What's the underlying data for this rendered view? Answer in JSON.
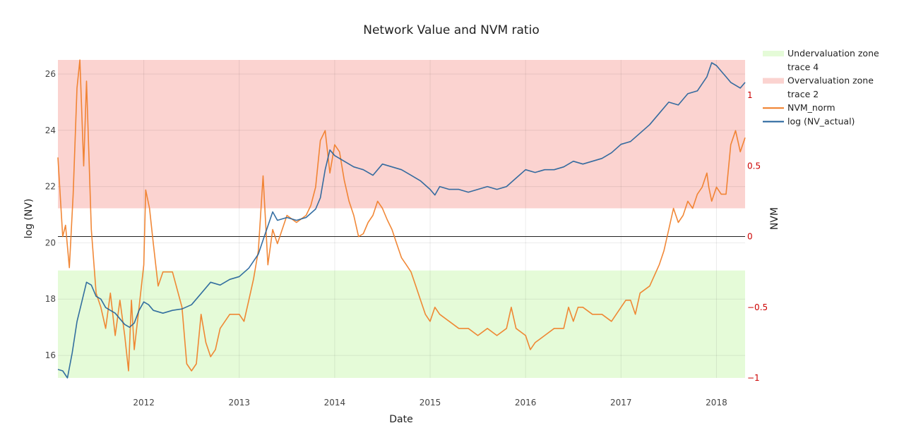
{
  "chart_data": {
    "type": "line",
    "title": "Network Value and NVM ratio",
    "xlabel": "Date",
    "ylabel_left": "log (NV)",
    "ylabel_right": "NVM",
    "x_range": [
      2011.1,
      2018.3
    ],
    "y_left_range": [
      15.2,
      26.5
    ],
    "y_right_range": [
      -1.0,
      1.25
    ],
    "x_ticks": [
      {
        "value": 2012,
        "label": "2012"
      },
      {
        "value": 2013,
        "label": "2013"
      },
      {
        "value": 2014,
        "label": "2014"
      },
      {
        "value": 2015,
        "label": "2015"
      },
      {
        "value": 2016,
        "label": "2016"
      },
      {
        "value": 2017,
        "label": "2017"
      },
      {
        "value": 2018,
        "label": "2018"
      }
    ],
    "y_left_ticks": [
      {
        "value": 16,
        "label": "16"
      },
      {
        "value": 18,
        "label": "18"
      },
      {
        "value": 20,
        "label": "20"
      },
      {
        "value": 22,
        "label": "22"
      },
      {
        "value": 24,
        "label": "24"
      },
      {
        "value": 26,
        "label": "26"
      }
    ],
    "y_right_ticks": [
      {
        "value": -1,
        "label": "−1"
      },
      {
        "value": -0.5,
        "label": "−0.5"
      },
      {
        "value": 0,
        "label": "0"
      },
      {
        "value": 0.5,
        "label": "0.5"
      },
      {
        "value": 1,
        "label": "1"
      }
    ],
    "zones": [
      {
        "name": "Undervaluation zone",
        "axis": "right",
        "y0": -1.0,
        "y1": -0.24,
        "color": "#e5fbd8"
      },
      {
        "name": "Overvaluation zone",
        "axis": "right",
        "y0": 0.2,
        "y1": 1.25,
        "color": "#fbd3d0"
      }
    ],
    "zero_line": {
      "axis": "right",
      "value": 0
    },
    "series": [
      {
        "name": "log (NV_actual)",
        "axis": "left",
        "color": "#1f5f99",
        "points": [
          [
            2011.1,
            15.5
          ],
          [
            2011.15,
            15.45
          ],
          [
            2011.2,
            15.2
          ],
          [
            2011.25,
            16.1
          ],
          [
            2011.3,
            17.2
          ],
          [
            2011.35,
            17.9
          ],
          [
            2011.4,
            18.6
          ],
          [
            2011.45,
            18.5
          ],
          [
            2011.5,
            18.1
          ],
          [
            2011.55,
            18.0
          ],
          [
            2011.6,
            17.7
          ],
          [
            2011.65,
            17.6
          ],
          [
            2011.7,
            17.5
          ],
          [
            2011.75,
            17.3
          ],
          [
            2011.8,
            17.1
          ],
          [
            2011.85,
            17.0
          ],
          [
            2011.9,
            17.15
          ],
          [
            2011.95,
            17.6
          ],
          [
            2012.0,
            17.9
          ],
          [
            2012.05,
            17.8
          ],
          [
            2012.1,
            17.6
          ],
          [
            2012.2,
            17.5
          ],
          [
            2012.3,
            17.6
          ],
          [
            2012.4,
            17.65
          ],
          [
            2012.5,
            17.8
          ],
          [
            2012.6,
            18.2
          ],
          [
            2012.7,
            18.6
          ],
          [
            2012.8,
            18.5
          ],
          [
            2012.9,
            18.7
          ],
          [
            2013.0,
            18.8
          ],
          [
            2013.1,
            19.1
          ],
          [
            2013.2,
            19.6
          ],
          [
            2013.25,
            20.1
          ],
          [
            2013.3,
            20.6
          ],
          [
            2013.35,
            21.1
          ],
          [
            2013.4,
            20.8
          ],
          [
            2013.5,
            20.9
          ],
          [
            2013.6,
            20.8
          ],
          [
            2013.7,
            20.9
          ],
          [
            2013.8,
            21.2
          ],
          [
            2013.85,
            21.6
          ],
          [
            2013.9,
            22.6
          ],
          [
            2013.95,
            23.3
          ],
          [
            2014.0,
            23.1
          ],
          [
            2014.1,
            22.9
          ],
          [
            2014.2,
            22.7
          ],
          [
            2014.3,
            22.6
          ],
          [
            2014.4,
            22.4
          ],
          [
            2014.5,
            22.8
          ],
          [
            2014.6,
            22.7
          ],
          [
            2014.7,
            22.6
          ],
          [
            2014.8,
            22.4
          ],
          [
            2014.9,
            22.2
          ],
          [
            2015.0,
            21.9
          ],
          [
            2015.05,
            21.7
          ],
          [
            2015.1,
            22.0
          ],
          [
            2015.2,
            21.9
          ],
          [
            2015.3,
            21.9
          ],
          [
            2015.4,
            21.8
          ],
          [
            2015.5,
            21.9
          ],
          [
            2015.6,
            22.0
          ],
          [
            2015.7,
            21.9
          ],
          [
            2015.8,
            22.0
          ],
          [
            2015.9,
            22.3
          ],
          [
            2016.0,
            22.6
          ],
          [
            2016.1,
            22.5
          ],
          [
            2016.2,
            22.6
          ],
          [
            2016.3,
            22.6
          ],
          [
            2016.4,
            22.7
          ],
          [
            2016.5,
            22.9
          ],
          [
            2016.6,
            22.8
          ],
          [
            2016.7,
            22.9
          ],
          [
            2016.8,
            23.0
          ],
          [
            2016.9,
            23.2
          ],
          [
            2017.0,
            23.5
          ],
          [
            2017.1,
            23.6
          ],
          [
            2017.2,
            23.9
          ],
          [
            2017.3,
            24.2
          ],
          [
            2017.4,
            24.6
          ],
          [
            2017.5,
            25.0
          ],
          [
            2017.6,
            24.9
          ],
          [
            2017.7,
            25.3
          ],
          [
            2017.8,
            25.4
          ],
          [
            2017.9,
            25.9
          ],
          [
            2017.95,
            26.4
          ],
          [
            2018.0,
            26.3
          ],
          [
            2018.05,
            26.1
          ],
          [
            2018.1,
            25.9
          ],
          [
            2018.15,
            25.7
          ],
          [
            2018.2,
            25.6
          ],
          [
            2018.25,
            25.5
          ],
          [
            2018.3,
            25.7
          ]
        ]
      },
      {
        "name": "NVM_norm",
        "axis": "right",
        "color": "#ef7b22",
        "points": [
          [
            2011.1,
            0.56
          ],
          [
            2011.15,
            0.0
          ],
          [
            2011.18,
            0.08
          ],
          [
            2011.22,
            -0.22
          ],
          [
            2011.26,
            0.3
          ],
          [
            2011.3,
            1.05
          ],
          [
            2011.33,
            1.25
          ],
          [
            2011.37,
            0.5
          ],
          [
            2011.4,
            1.1
          ],
          [
            2011.45,
            0.05
          ],
          [
            2011.5,
            -0.4
          ],
          [
            2011.55,
            -0.5
          ],
          [
            2011.6,
            -0.65
          ],
          [
            2011.65,
            -0.4
          ],
          [
            2011.7,
            -0.7
          ],
          [
            2011.75,
            -0.45
          ],
          [
            2011.8,
            -0.7
          ],
          [
            2011.84,
            -0.95
          ],
          [
            2011.87,
            -0.45
          ],
          [
            2011.9,
            -0.8
          ],
          [
            2011.95,
            -0.5
          ],
          [
            2012.0,
            -0.2
          ],
          [
            2012.02,
            0.33
          ],
          [
            2012.06,
            0.2
          ],
          [
            2012.1,
            -0.05
          ],
          [
            2012.15,
            -0.35
          ],
          [
            2012.2,
            -0.25
          ],
          [
            2012.3,
            -0.25
          ],
          [
            2012.4,
            -0.5
          ],
          [
            2012.45,
            -0.9
          ],
          [
            2012.5,
            -0.95
          ],
          [
            2012.55,
            -0.9
          ],
          [
            2012.6,
            -0.55
          ],
          [
            2012.65,
            -0.75
          ],
          [
            2012.7,
            -0.85
          ],
          [
            2012.75,
            -0.8
          ],
          [
            2012.8,
            -0.65
          ],
          [
            2012.9,
            -0.55
          ],
          [
            2013.0,
            -0.55
          ],
          [
            2013.05,
            -0.6
          ],
          [
            2013.1,
            -0.45
          ],
          [
            2013.15,
            -0.3
          ],
          [
            2013.2,
            -0.1
          ],
          [
            2013.25,
            0.43
          ],
          [
            2013.3,
            -0.2
          ],
          [
            2013.35,
            0.05
          ],
          [
            2013.4,
            -0.05
          ],
          [
            2013.5,
            0.15
          ],
          [
            2013.6,
            0.1
          ],
          [
            2013.7,
            0.15
          ],
          [
            2013.75,
            0.22
          ],
          [
            2013.8,
            0.35
          ],
          [
            2013.85,
            0.68
          ],
          [
            2013.9,
            0.75
          ],
          [
            2013.95,
            0.45
          ],
          [
            2014.0,
            0.65
          ],
          [
            2014.05,
            0.6
          ],
          [
            2014.1,
            0.4
          ],
          [
            2014.15,
            0.25
          ],
          [
            2014.2,
            0.15
          ],
          [
            2014.25,
            0.0
          ],
          [
            2014.3,
            0.02
          ],
          [
            2014.35,
            0.1
          ],
          [
            2014.4,
            0.15
          ],
          [
            2014.45,
            0.25
          ],
          [
            2014.5,
            0.2
          ],
          [
            2014.55,
            0.12
          ],
          [
            2014.6,
            0.05
          ],
          [
            2014.65,
            -0.05
          ],
          [
            2014.7,
            -0.15
          ],
          [
            2014.75,
            -0.2
          ],
          [
            2014.8,
            -0.25
          ],
          [
            2014.85,
            -0.35
          ],
          [
            2014.9,
            -0.45
          ],
          [
            2014.95,
            -0.55
          ],
          [
            2015.0,
            -0.6
          ],
          [
            2015.05,
            -0.5
          ],
          [
            2015.1,
            -0.55
          ],
          [
            2015.2,
            -0.6
          ],
          [
            2015.3,
            -0.65
          ],
          [
            2015.4,
            -0.65
          ],
          [
            2015.5,
            -0.7
          ],
          [
            2015.6,
            -0.65
          ],
          [
            2015.7,
            -0.7
          ],
          [
            2015.8,
            -0.65
          ],
          [
            2015.85,
            -0.5
          ],
          [
            2015.9,
            -0.65
          ],
          [
            2016.0,
            -0.7
          ],
          [
            2016.05,
            -0.8
          ],
          [
            2016.1,
            -0.75
          ],
          [
            2016.2,
            -0.7
          ],
          [
            2016.3,
            -0.65
          ],
          [
            2016.4,
            -0.65
          ],
          [
            2016.45,
            -0.5
          ],
          [
            2016.5,
            -0.6
          ],
          [
            2016.55,
            -0.5
          ],
          [
            2016.6,
            -0.5
          ],
          [
            2016.7,
            -0.55
          ],
          [
            2016.8,
            -0.55
          ],
          [
            2016.9,
            -0.6
          ],
          [
            2017.0,
            -0.5
          ],
          [
            2017.05,
            -0.45
          ],
          [
            2017.1,
            -0.45
          ],
          [
            2017.15,
            -0.55
          ],
          [
            2017.2,
            -0.4
          ],
          [
            2017.3,
            -0.35
          ],
          [
            2017.4,
            -0.2
          ],
          [
            2017.45,
            -0.1
          ],
          [
            2017.5,
            0.05
          ],
          [
            2017.55,
            0.2
          ],
          [
            2017.6,
            0.1
          ],
          [
            2017.65,
            0.15
          ],
          [
            2017.7,
            0.25
          ],
          [
            2017.75,
            0.2
          ],
          [
            2017.8,
            0.3
          ],
          [
            2017.85,
            0.35
          ],
          [
            2017.9,
            0.45
          ],
          [
            2017.92,
            0.35
          ],
          [
            2017.95,
            0.25
          ],
          [
            2018.0,
            0.35
          ],
          [
            2018.05,
            0.3
          ],
          [
            2018.1,
            0.3
          ],
          [
            2018.15,
            0.65
          ],
          [
            2018.2,
            0.75
          ],
          [
            2018.25,
            0.6
          ],
          [
            2018.3,
            0.7
          ]
        ]
      }
    ],
    "legend": [
      {
        "label": "Undervaluation zone",
        "kind": "fill",
        "color": "#e5fbd8"
      },
      {
        "label": "trace 4",
        "kind": "none",
        "color": ""
      },
      {
        "label": "Overvaluation zone",
        "kind": "fill",
        "color": "#fbd3d0"
      },
      {
        "label": "trace 2",
        "kind": "none",
        "color": ""
      },
      {
        "label": "NVM_norm",
        "kind": "line",
        "color": "#ef7b22"
      },
      {
        "label": "log (NV_actual)",
        "kind": "line",
        "color": "#1f5f99"
      }
    ]
  }
}
